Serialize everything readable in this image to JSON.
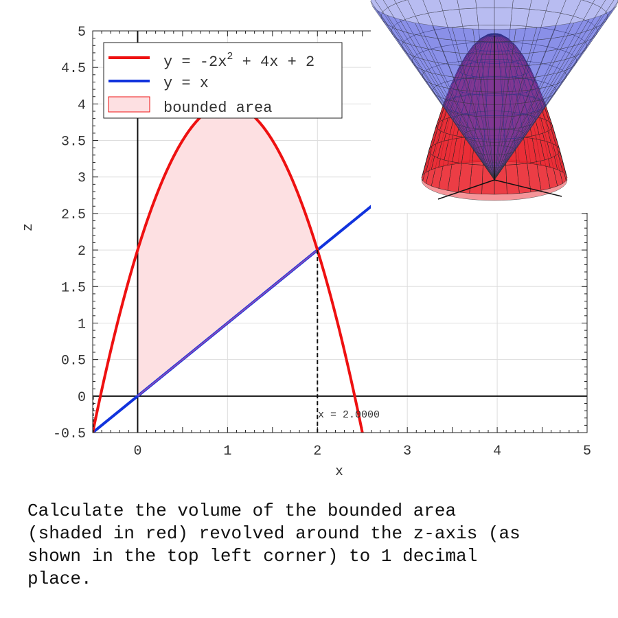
{
  "chart_data": {
    "type": "line",
    "xlabel": "x",
    "ylabel": "z",
    "xlim": [
      -0.5,
      5
    ],
    "ylim": [
      -0.5,
      5
    ],
    "x_ticks": [
      0,
      1,
      2,
      3,
      4,
      5
    ],
    "x_tick_labels": [
      "0",
      "1",
      "2",
      "3",
      "4",
      "5"
    ],
    "y_ticks": [
      -0.5,
      0,
      0.5,
      1,
      1.5,
      2,
      2.5,
      3,
      3.5,
      4,
      4.5,
      5
    ],
    "y_tick_labels": [
      "-0.5",
      "0",
      "0.5",
      "1",
      "1.5",
      "2",
      "2.5",
      "3",
      "3.5",
      "4",
      "4.5",
      "5"
    ],
    "grid": true,
    "legend_position": "top-left",
    "series": [
      {
        "name": "y = -2x² + 4x + 2",
        "label_main": "y = -2x",
        "label_sup": "2",
        "label_tail": " + 4x + 2",
        "color": "#ee1111",
        "function": "-2x^2 + 4x + 2",
        "x_range": [
          -0.5,
          2.5
        ]
      },
      {
        "name": "y = x",
        "color": "#1133dd",
        "function": "x",
        "x_range": [
          -0.5,
          5
        ]
      }
    ],
    "shaded_region": {
      "name": "bounded area",
      "x_range": [
        0,
        2
      ],
      "upper": "-2x^2 + 4x + 2",
      "lower": "x",
      "color": "#fde0e2"
    },
    "intersection_marker": {
      "x": 2.0,
      "label": "x = 2.0000"
    },
    "inset": {
      "description_colors": {
        "paraboloid": "#e8202a",
        "cone": "#3340d8"
      }
    }
  },
  "question": "Calculate the volume of the bounded area\n(shaded in red) revolved around the z-axis (as\nshown in the top left corner) to 1 decimal\nplace."
}
